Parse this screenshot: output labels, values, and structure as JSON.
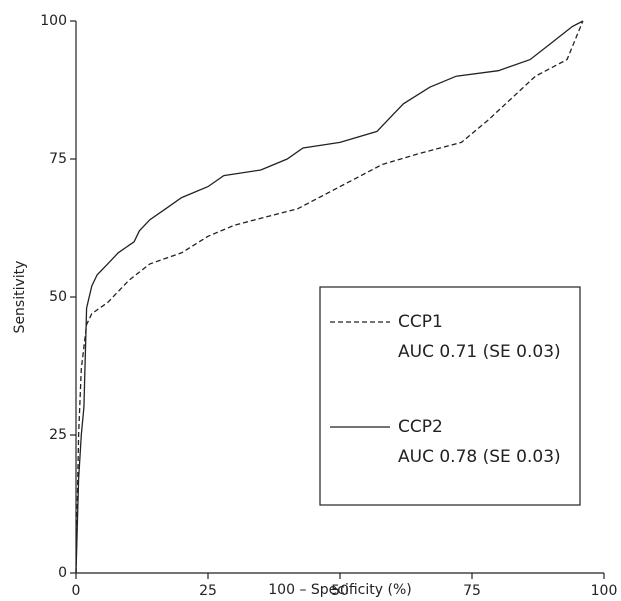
{
  "chart_data": {
    "type": "line",
    "x_label": "100 – Specificity (%)",
    "y_label": "Sensitivity",
    "xlim": [
      0,
      100
    ],
    "xticks": [
      0,
      25,
      50,
      75,
      100
    ],
    "ylim": [
      0,
      100
    ],
    "yticks": [
      0,
      25,
      50,
      75,
      100
    ],
    "legend": "lower right",
    "series": [
      {
        "name": "CCP1",
        "label": "AUC 0.71 (SE 0.03)",
        "color": "#222222",
        "dashed": true,
        "x": [
          0,
          0.5,
          1,
          2,
          3,
          6,
          10,
          14,
          20,
          25,
          30,
          42,
          50,
          58,
          65,
          73,
          78,
          87,
          93,
          96
        ],
        "values": [
          0,
          25,
          37,
          45,
          47,
          49,
          53,
          56,
          58,
          61,
          63,
          66,
          70,
          74,
          76,
          78,
          82,
          90,
          93,
          100
        ]
      },
      {
        "name": "CCP2",
        "label": "AUC 0.78 (SE 0.03)",
        "color": "#222222",
        "dashed": false,
        "x": [
          0,
          0.5,
          1,
          1.5,
          2,
          3,
          4,
          6,
          8,
          11,
          12,
          14,
          17,
          20,
          25,
          28,
          35,
          40,
          43,
          50,
          57,
          60,
          62,
          67,
          72,
          80,
          86,
          90,
          94,
          96
        ],
        "values": [
          0,
          17,
          25,
          30,
          48,
          52,
          54,
          56,
          58,
          60,
          62,
          64,
          66,
          68,
          70,
          72,
          73,
          75,
          77,
          78,
          80,
          83,
          85,
          88,
          90,
          91,
          93,
          96,
          99,
          100
        ]
      }
    ]
  }
}
